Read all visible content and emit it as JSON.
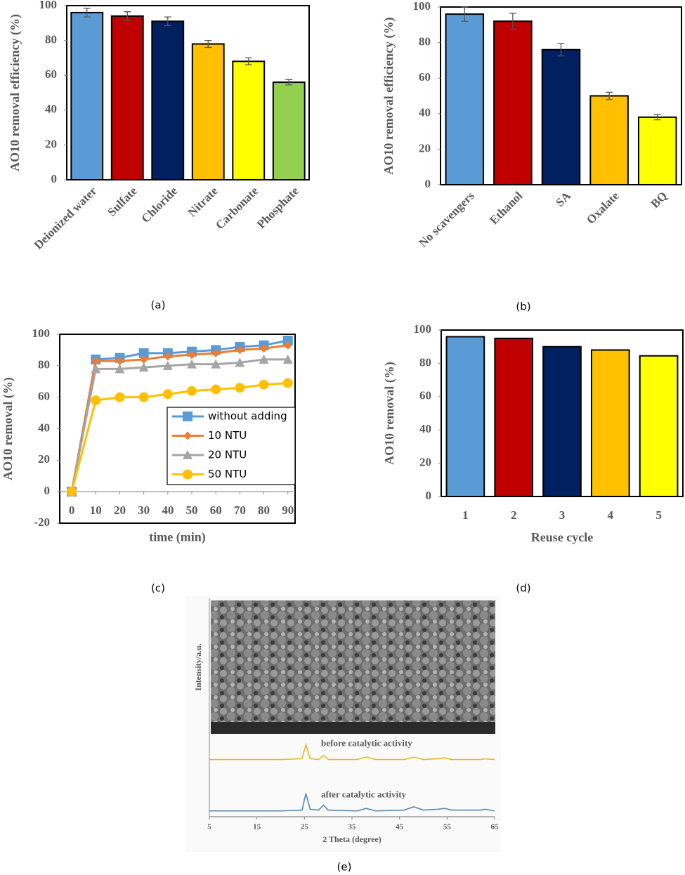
{
  "chart_data": [
    {
      "type": "bar",
      "ylabel": "AO10 removal efficiency (%)",
      "caption": "(a)",
      "categories": [
        "Deionized water",
        "Sulfate",
        "Chloride",
        "Nitrate",
        "Carbonate",
        "Phosphate"
      ],
      "values": [
        96,
        94,
        91,
        78,
        68,
        56
      ],
      "errors": [
        2.5,
        2.5,
        2.5,
        2,
        2,
        1.5
      ],
      "colors": [
        "#5b9bd5",
        "#c00000",
        "#002060",
        "#ffc000",
        "#ffff00",
        "#92d050"
      ],
      "ylim": [
        0,
        100
      ],
      "yticks": [
        0,
        20,
        40,
        60,
        80,
        100
      ],
      "x_label_rotation": -45
    },
    {
      "type": "bar",
      "ylabel": "AO10 removal efficiency (%)",
      "caption": "(b)",
      "categories": [
        "No scavengers",
        "Ethanol",
        "SA",
        "Oxalate",
        "BQ"
      ],
      "values": [
        96,
        92,
        76,
        50,
        38
      ],
      "errors": [
        4,
        4.5,
        3.5,
        2,
        1.5
      ],
      "colors": [
        "#5b9bd5",
        "#c00000",
        "#002060",
        "#ffc000",
        "#ffff00"
      ],
      "ylim": [
        0,
        100
      ],
      "yticks": [
        0,
        20,
        40,
        60,
        80,
        100
      ],
      "x_label_rotation": -45
    },
    {
      "type": "line",
      "ylabel": "AO10 removal (%)",
      "xlabel": "time (min)",
      "caption": "(c)",
      "x": [
        0,
        10,
        20,
        30,
        40,
        50,
        60,
        70,
        80,
        90
      ],
      "series": [
        {
          "name": "without adding",
          "color": "#5b9bd5",
          "marker": "square",
          "values": [
            0,
            84,
            85,
            88,
            88,
            89,
            90,
            92,
            93,
            96
          ]
        },
        {
          "name": "10 NTU",
          "color": "#ed7d31",
          "marker": "diamond",
          "values": [
            0,
            83,
            83,
            84,
            86,
            87,
            88,
            90,
            91,
            93
          ]
        },
        {
          "name": "20 NTU",
          "color": "#a5a5a5",
          "marker": "triangle",
          "values": [
            0,
            78,
            78,
            79,
            80,
            81,
            81,
            82,
            84,
            84
          ]
        },
        {
          "name": "50 NTU",
          "color": "#ffc000",
          "marker": "circle",
          "values": [
            0,
            58,
            60,
            60,
            62,
            64,
            65,
            66,
            68,
            69
          ]
        }
      ],
      "xlim": [
        -5,
        93
      ],
      "xticks": [
        0,
        10,
        20,
        30,
        40,
        50,
        60,
        70,
        80,
        90
      ],
      "ylim": [
        -20,
        100
      ],
      "yticks": [
        -20,
        0,
        20,
        40,
        60,
        80,
        100
      ],
      "legend": "lower right"
    },
    {
      "type": "bar",
      "ylabel": "AO10 removal (%)",
      "xlabel": "Reuse cycle",
      "caption": "(d)",
      "categories": [
        "1",
        "2",
        "3",
        "4",
        "5"
      ],
      "values": [
        96,
        95,
        90,
        88,
        84.5
      ],
      "colors": [
        "#5b9bd5",
        "#c00000",
        "#002060",
        "#ffc000",
        "#ffff00"
      ],
      "ylim": [
        0,
        100
      ],
      "yticks": [
        0,
        20,
        40,
        60,
        80,
        100
      ]
    },
    {
      "type": "line",
      "ylabel": "Intensity/a.u.",
      "xlabel": "2 Theta (degree)",
      "caption": "(e)",
      "x": [
        5,
        20,
        24.5,
        25.3,
        26.2,
        28,
        29,
        30,
        36,
        38,
        40,
        46,
        48,
        50,
        53,
        54.5,
        56,
        62,
        63,
        65
      ],
      "series": [
        {
          "name": "before catalytic activity",
          "color": "#e8b923",
          "values": [
            6.9,
            6.9,
            7.0,
            8.7,
            7.0,
            6.9,
            7.4,
            6.9,
            6.9,
            7.2,
            6.9,
            6.9,
            7.2,
            6.9,
            7.0,
            7.1,
            6.9,
            6.9,
            7.0,
            6.9
          ]
        },
        {
          "name": "after catalytic activity",
          "color": "#5a86ad",
          "values": [
            0.7,
            0.7,
            0.8,
            2.8,
            0.9,
            0.8,
            1.4,
            0.8,
            0.7,
            1.0,
            0.7,
            0.8,
            1.2,
            0.8,
            0.9,
            1.0,
            0.8,
            0.8,
            0.9,
            0.7
          ]
        }
      ],
      "xlim": [
        5,
        65
      ],
      "xticks": [
        5,
        15,
        25,
        35,
        45,
        55,
        65
      ],
      "ylim": [
        0,
        10
      ],
      "legend": "inline"
    }
  ]
}
